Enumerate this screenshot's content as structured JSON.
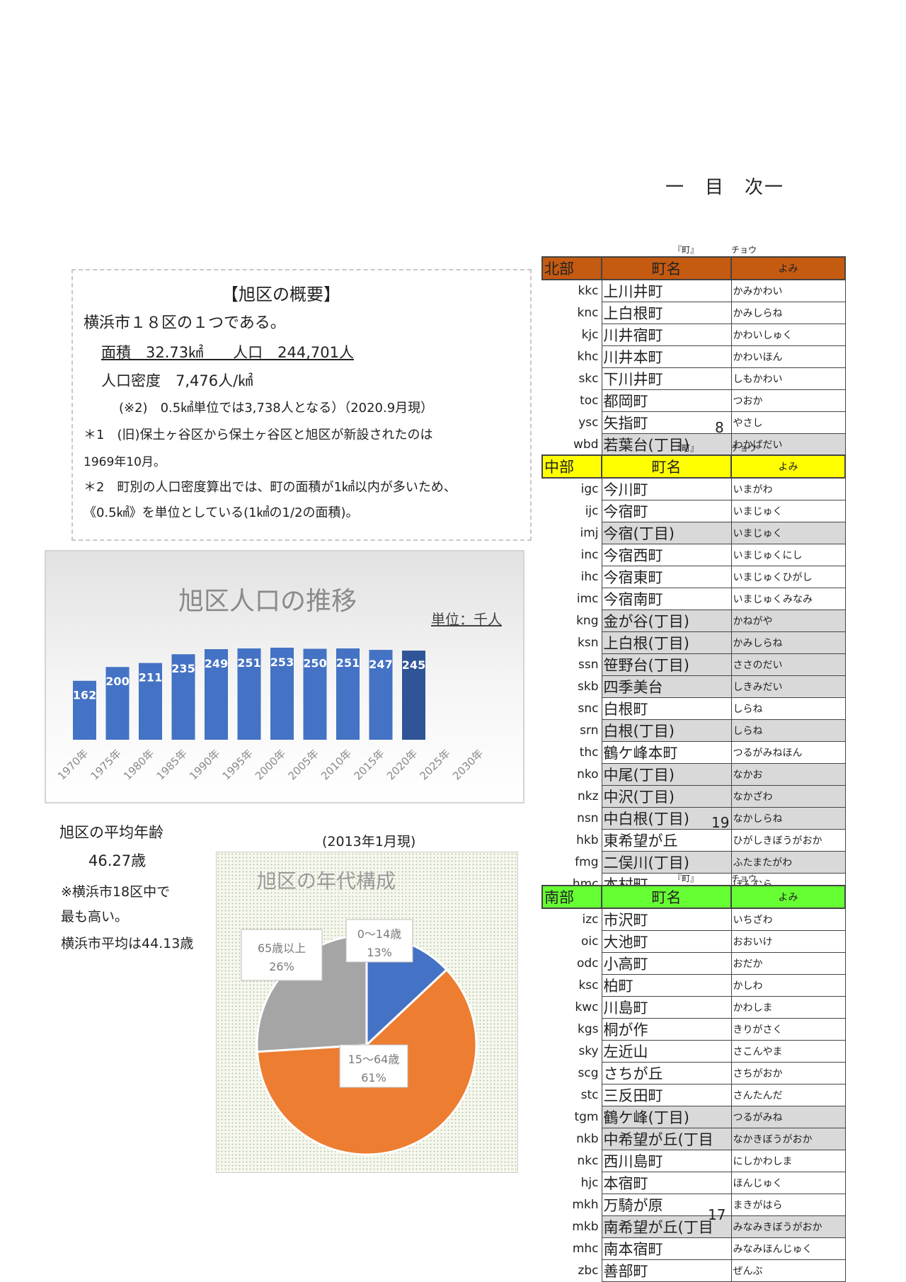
{
  "toc_title": "一　目　次一",
  "overview": {
    "heading": "【旭区の概要】",
    "line1": "横浜市１８区の１つである。",
    "line2": "面積　32.73㎢　　人口　244,701人",
    "line3": "人口密度　7,476人/㎢",
    "line4": "(※2)　0.5㎢単位では3,738人となる）（2020.9月現）",
    "line5": "＊1　(旧)保土ヶ谷区から保土ヶ谷区と旭区が新設されたのは",
    "line6": "1969年10月。",
    "line7": "＊2　町別の人口密度算出では、町の面積が1㎢以内が多いため、",
    "line8": "《0.5㎢》を単位としている(1㎢の1/2の面積)。"
  },
  "average_age": {
    "label": "旭区の平均年齢",
    "value": "46.27歳",
    "note1": "※横浜市18区中で",
    "note2": "最も高い。",
    "note3": "横浜市平均は44.13歳"
  },
  "pie_date": "(2013年1月現)",
  "chart_data": [
    {
      "type": "bar",
      "title": "旭区人口の推移",
      "unit_label": "単位：千人",
      "categories": [
        "1970年",
        "1975年",
        "1980年",
        "1985年",
        "1990年",
        "1995年",
        "2000年",
        "2005年",
        "2010年",
        "2015年",
        "2020年",
        "2025年",
        "2030年"
      ],
      "values": [
        162,
        200,
        211,
        235,
        249,
        251,
        253,
        250,
        251,
        247,
        245,
        null,
        null
      ],
      "ylim": [
        0,
        260
      ],
      "colors": {
        "bar": "#4472c4",
        "highlight": "#2f5597"
      }
    },
    {
      "type": "pie",
      "title": "旭区の年代構成",
      "slices": [
        {
          "label": "0～14歳",
          "value": 13,
          "pct_text": "13%",
          "color": "#4472c4"
        },
        {
          "label": "15～64歳",
          "value": 61,
          "pct_text": "61%",
          "color": "#ed7d31"
        },
        {
          "label": "65歳以上",
          "value": 26,
          "pct_text": "26%",
          "color": "#a5a5a5"
        }
      ]
    }
  ],
  "tables": {
    "header": {
      "cho_label": "『町』",
      "cho_kana": "チョウ",
      "name_label": "町名",
      "yomi_label": "よみ"
    },
    "north": {
      "region": "北部",
      "color": "#c55a11",
      "count": "8",
      "rows": [
        {
          "code": "kkc",
          "name": "上川井町",
          "yomi": "かみかわい",
          "shaded": false
        },
        {
          "code": "knc",
          "name": "上白根町",
          "yomi": "かみしらね",
          "shaded": false
        },
        {
          "code": "kjc",
          "name": "川井宿町",
          "yomi": "かわいしゅく",
          "shaded": false
        },
        {
          "code": "khc",
          "name": "川井本町",
          "yomi": "かわいほん",
          "shaded": false
        },
        {
          "code": "skc",
          "name": "下川井町",
          "yomi": "しもかわい",
          "shaded": false
        },
        {
          "code": "toc",
          "name": "都岡町",
          "yomi": "つおか",
          "shaded": false
        },
        {
          "code": "ysc",
          "name": "矢指町",
          "yomi": "やさし",
          "shaded": false
        },
        {
          "code": "wbd",
          "name": "若葉台(丁目)",
          "yomi": "わかばだい",
          "shaded": true
        }
      ]
    },
    "central": {
      "region": "中部",
      "color": "#ffff00",
      "count": "19",
      "rows": [
        {
          "code": "igc",
          "name": "今川町",
          "yomi": "いまがわ",
          "shaded": false
        },
        {
          "code": "ijc",
          "name": "今宿町",
          "yomi": "いまじゅく",
          "shaded": false
        },
        {
          "code": "imj",
          "name": "今宿(丁目)",
          "yomi": "いまじゅく",
          "shaded": true
        },
        {
          "code": "inc",
          "name": "今宿西町",
          "yomi": "いまじゅくにし",
          "shaded": false
        },
        {
          "code": "ihc",
          "name": "今宿東町",
          "yomi": "いまじゅくひがし",
          "shaded": false
        },
        {
          "code": "imc",
          "name": "今宿南町",
          "yomi": "いまじゅくみなみ",
          "shaded": false
        },
        {
          "code": "kng",
          "name": "金が谷(丁目)",
          "yomi": "かねがや",
          "shaded": true
        },
        {
          "code": "ksn",
          "name": "上白根(丁目)",
          "yomi": "かみしらね",
          "shaded": true
        },
        {
          "code": "ssn",
          "name": "笹野台(丁目)",
          "yomi": "ささのだい",
          "shaded": true
        },
        {
          "code": "skb",
          "name": "四季美台",
          "yomi": "しきみだい",
          "shaded": true
        },
        {
          "code": "snc",
          "name": "白根町",
          "yomi": "しらね",
          "shaded": false
        },
        {
          "code": "srn",
          "name": "白根(丁目)",
          "yomi": "しらね",
          "shaded": true
        },
        {
          "code": "thc",
          "name": "鶴ケ峰本町",
          "yomi": "つるがみねほん",
          "shaded": false
        },
        {
          "code": "nko",
          "name": "中尾(丁目)",
          "yomi": "なかお",
          "shaded": true
        },
        {
          "code": "nkz",
          "name": "中沢(丁目)",
          "yomi": "なかざわ",
          "shaded": true
        },
        {
          "code": "nsn",
          "name": "中白根(丁目)",
          "yomi": "なかしらね",
          "shaded": true
        },
        {
          "code": "hkb",
          "name": "東希望が丘",
          "yomi": "ひがしきぼうがおか",
          "shaded": false
        },
        {
          "code": "fmg",
          "name": "二俣川(丁目)",
          "yomi": "ふたまたがわ",
          "shaded": true
        },
        {
          "code": "hmc",
          "name": "本村町",
          "yomi": "ほんむら",
          "shaded": false
        }
      ]
    },
    "south": {
      "region": "南部",
      "color": "#66ff33",
      "count": "17",
      "rows": [
        {
          "code": "izc",
          "name": "市沢町",
          "yomi": "いちざわ",
          "shaded": false
        },
        {
          "code": "oic",
          "name": "大池町",
          "yomi": "おおいけ",
          "shaded": false
        },
        {
          "code": "odc",
          "name": "小高町",
          "yomi": "おだか",
          "shaded": false
        },
        {
          "code": "ksc",
          "name": "柏町",
          "yomi": "かしわ",
          "shaded": false
        },
        {
          "code": "kwc",
          "name": "川島町",
          "yomi": "かわしま",
          "shaded": false
        },
        {
          "code": "kgs",
          "name": "桐が作",
          "yomi": "きりがさく",
          "shaded": false
        },
        {
          "code": "sky",
          "name": "左近山",
          "yomi": "さこんやま",
          "shaded": false
        },
        {
          "code": "scg",
          "name": "さちが丘",
          "yomi": "さちがおか",
          "shaded": false
        },
        {
          "code": "stc",
          "name": "三反田町",
          "yomi": "さんたんだ",
          "shaded": false
        },
        {
          "code": "tgm",
          "name": "鶴ケ峰(丁目)",
          "yomi": "つるがみね",
          "shaded": true
        },
        {
          "code": "nkb",
          "name": "中希望が丘(丁目",
          "yomi": "なかきぼうがおか",
          "shaded": true
        },
        {
          "code": "nkc",
          "name": "西川島町",
          "yomi": "にしかわしま",
          "shaded": false
        },
        {
          "code": "hjc",
          "name": "本宿町",
          "yomi": "ほんじゅく",
          "shaded": false
        },
        {
          "code": "mkh",
          "name": "万騎が原",
          "yomi": "まきがはら",
          "shaded": false
        },
        {
          "code": "mkb",
          "name": "南希望が丘(丁目",
          "yomi": "みなみきぼうがおか",
          "shaded": true
        },
        {
          "code": "mhc",
          "name": "南本宿町",
          "yomi": "みなみほんじゅく",
          "shaded": false
        },
        {
          "code": "zbc",
          "name": "善部町",
          "yomi": "ぜんぶ",
          "shaded": false
        }
      ]
    }
  }
}
